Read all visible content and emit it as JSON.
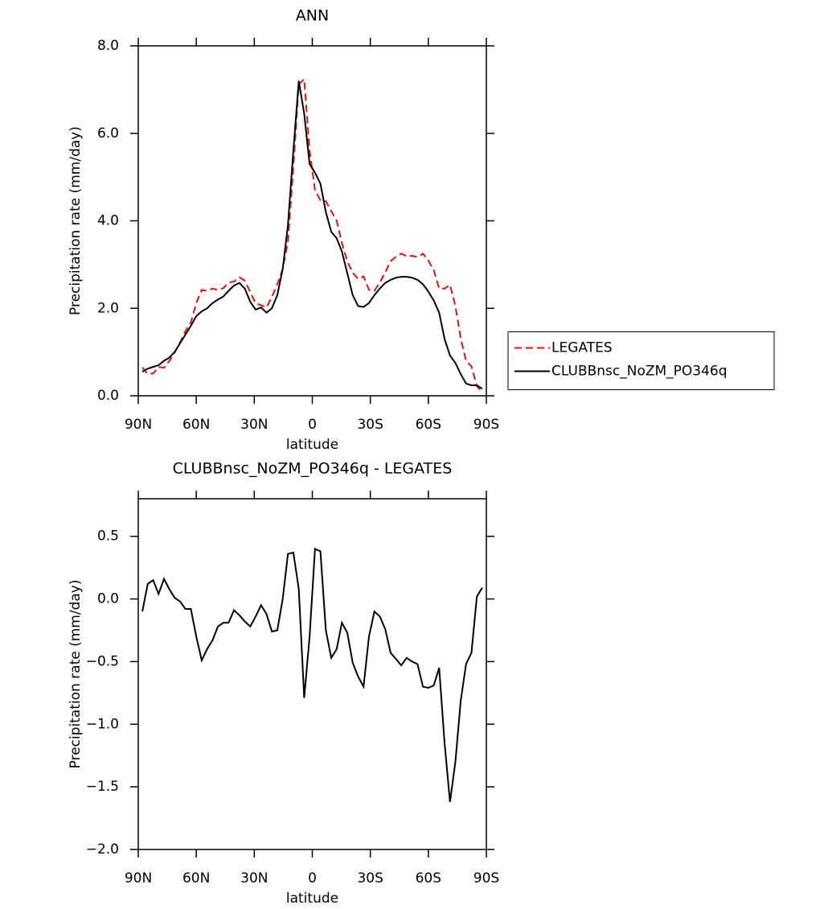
{
  "chart_data": [
    {
      "type": "line",
      "title": "ANN",
      "xlabel": "latitude",
      "ylabel": "Precipitation rate (mm/day)",
      "x": [
        87.9,
        85.1,
        82.3,
        79.5,
        76.7,
        74.0,
        71.2,
        68.4,
        65.6,
        62.8,
        60.0,
        57.2,
        54.4,
        51.6,
        48.8,
        46.0,
        43.3,
        40.5,
        37.7,
        34.9,
        32.1,
        29.3,
        26.5,
        23.7,
        20.9,
        18.1,
        15.3,
        12.6,
        9.8,
        7.0,
        4.2,
        1.4,
        -1.4,
        -4.2,
        -7.0,
        -9.8,
        -12.6,
        -15.3,
        -18.1,
        -20.9,
        -23.7,
        -26.5,
        -29.3,
        -32.1,
        -34.9,
        -37.7,
        -40.5,
        -43.3,
        -46.0,
        -48.8,
        -51.6,
        -54.4,
        -57.2,
        -60.0,
        -62.8,
        -65.6,
        -68.4,
        -71.2,
        -74.0,
        -76.7,
        -79.5,
        -82.3,
        -85.1,
        -87.9
      ],
      "series": [
        {
          "name": "LEGATES",
          "color": "#e0140f",
          "dashed": true,
          "values": [
            0.65,
            0.5,
            0.51,
            0.66,
            0.64,
            0.79,
            0.99,
            1.22,
            1.48,
            1.68,
            2.12,
            2.42,
            2.4,
            2.45,
            2.42,
            2.46,
            2.59,
            2.61,
            2.71,
            2.63,
            2.37,
            2.11,
            2.07,
            2.02,
            2.26,
            2.55,
            2.9,
            3.54,
            5.23,
            7.12,
            7.24,
            5.6,
            4.7,
            4.47,
            4.45,
            4.22,
            4.0,
            3.49,
            3.07,
            2.81,
            2.67,
            2.73,
            2.42,
            2.4,
            2.59,
            2.82,
            3.08,
            3.18,
            3.25,
            3.19,
            3.2,
            3.17,
            3.25,
            3.09,
            2.87,
            2.45,
            2.45,
            2.54,
            2.05,
            1.32,
            0.8,
            0.67,
            0.22,
            0.07
          ]
        },
        {
          "name": "CLUBBnsc_NoZM_PO346q",
          "color": "#000000",
          "dashed": false,
          "values": [
            0.55,
            0.62,
            0.66,
            0.7,
            0.8,
            0.87,
            1.0,
            1.2,
            1.4,
            1.6,
            1.82,
            1.93,
            2.0,
            2.12,
            2.2,
            2.27,
            2.4,
            2.52,
            2.58,
            2.45,
            2.15,
            1.97,
            2.02,
            1.9,
            2.0,
            2.3,
            2.9,
            3.9,
            5.6,
            7.2,
            6.45,
            5.3,
            5.1,
            4.85,
            4.2,
            3.75,
            3.6,
            3.3,
            2.8,
            2.3,
            2.05,
            2.03,
            2.12,
            2.3,
            2.45,
            2.58,
            2.65,
            2.7,
            2.72,
            2.72,
            2.7,
            2.65,
            2.55,
            2.38,
            2.18,
            1.9,
            1.3,
            0.92,
            0.75,
            0.5,
            0.28,
            0.24,
            0.24,
            0.16
          ]
        }
      ],
      "legend": "right",
      "xlim": [
        90,
        -90
      ],
      "xticks": [
        {
          "value": 90,
          "label": "90N"
        },
        {
          "value": 60,
          "label": "60N"
        },
        {
          "value": 30,
          "label": "30N"
        },
        0,
        {
          "value": -30,
          "label": "30S"
        },
        {
          "value": -60,
          "label": "60S"
        },
        {
          "value": -90,
          "label": "90S"
        }
      ],
      "ylim": [
        0,
        8
      ],
      "yticks": [
        {
          "value": 0,
          "label": "0.0"
        },
        {
          "value": 2,
          "label": "2.0"
        },
        {
          "value": 4,
          "label": "4.0"
        },
        {
          "value": 6,
          "label": "6.0"
        },
        {
          "value": 8,
          "label": "8.0"
        }
      ]
    },
    {
      "type": "line",
      "title": "CLUBBnsc_NoZM_PO346q - LEGATES",
      "xlabel": "latitude",
      "ylabel": "Precipitation rate (mm/day)",
      "x": [
        87.9,
        85.1,
        82.3,
        79.5,
        76.7,
        74.0,
        71.2,
        68.4,
        65.6,
        62.8,
        60.0,
        57.2,
        54.4,
        51.6,
        48.8,
        46.0,
        43.3,
        40.5,
        37.7,
        34.9,
        32.1,
        29.3,
        26.5,
        23.7,
        20.9,
        18.1,
        15.3,
        12.6,
        9.8,
        7.0,
        4.2,
        1.4,
        -1.4,
        -4.2,
        -7.0,
        -9.8,
        -12.6,
        -15.3,
        -18.1,
        -20.9,
        -23.7,
        -26.5,
        -29.3,
        -32.1,
        -34.9,
        -37.7,
        -40.5,
        -43.3,
        -46.0,
        -48.8,
        -51.6,
        -54.4,
        -57.2,
        -60.0,
        -62.8,
        -65.6,
        -68.4,
        -71.2,
        -74.0,
        -76.7,
        -79.5,
        -82.3,
        -85.1,
        -87.9
      ],
      "color": "#000000",
      "values": [
        -0.1,
        0.12,
        0.15,
        0.04,
        0.16,
        0.08,
        0.01,
        -0.02,
        -0.08,
        -0.08,
        -0.3,
        -0.49,
        -0.4,
        -0.33,
        -0.22,
        -0.19,
        -0.19,
        -0.09,
        -0.13,
        -0.18,
        -0.22,
        -0.14,
        -0.05,
        -0.12,
        -0.26,
        -0.25,
        0.0,
        0.36,
        0.37,
        0.08,
        -0.79,
        -0.3,
        0.4,
        0.38,
        -0.25,
        -0.47,
        -0.4,
        -0.19,
        -0.27,
        -0.51,
        -0.62,
        -0.7,
        -0.3,
        -0.1,
        -0.14,
        -0.24,
        -0.43,
        -0.48,
        -0.53,
        -0.47,
        -0.5,
        -0.52,
        -0.7,
        -0.71,
        -0.69,
        -0.55,
        -1.15,
        -1.62,
        -1.3,
        -0.82,
        -0.52,
        -0.43,
        0.02,
        0.09
      ],
      "xlim": [
        90,
        -90
      ],
      "xticks": [
        {
          "value": 90,
          "label": "90N"
        },
        {
          "value": 60,
          "label": "60N"
        },
        {
          "value": 30,
          "label": "30N"
        },
        0,
        {
          "value": -30,
          "label": "30S"
        },
        {
          "value": -60,
          "label": "60S"
        },
        {
          "value": -90,
          "label": "90S"
        }
      ],
      "ylim": [
        -2,
        0.8
      ],
      "yticks": [
        {
          "value": -2,
          "label": "−2.0"
        },
        {
          "value": -1.5,
          "label": "−1.5"
        },
        {
          "value": -1,
          "label": "−1.0"
        },
        {
          "value": -0.5,
          "label": "−0.5"
        },
        {
          "value": 0,
          "label": "0.0"
        },
        0.5
      ]
    }
  ]
}
